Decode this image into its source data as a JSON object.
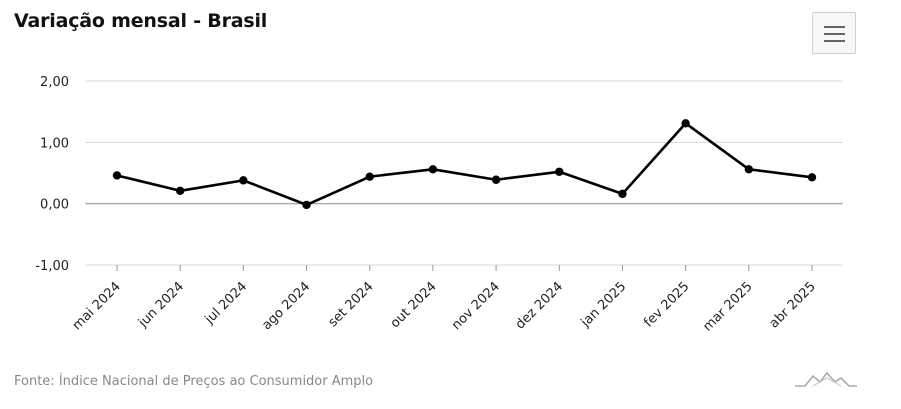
{
  "title": "Variação mensal - Brasil",
  "source": "Fonte: Índice Nacional de Preços ao Consumidor Amplo",
  "menu_icon": "hamburger-menu-icon",
  "logo_icon": "mountain-logo-icon",
  "chart_data": {
    "type": "line",
    "title": "Variação mensal - Brasil",
    "categories": [
      "mai 2024",
      "jun 2024",
      "jul 2024",
      "ago 2024",
      "set 2024",
      "out 2024",
      "nov 2024",
      "dez 2024",
      "jan 2025",
      "fev 2025",
      "mar 2025",
      "abr 2025"
    ],
    "series": [
      {
        "values": [
          0.46,
          0.21,
          0.38,
          -0.02,
          0.44,
          0.56,
          0.39,
          0.52,
          0.16,
          1.31,
          0.56,
          0.43
        ],
        "color": "#000000"
      }
    ],
    "yticks": [
      "-1,00",
      "0,00",
      "1,00",
      "2,00"
    ],
    "ylim": [
      -1,
      2
    ],
    "grid": true,
    "legend": false
  }
}
